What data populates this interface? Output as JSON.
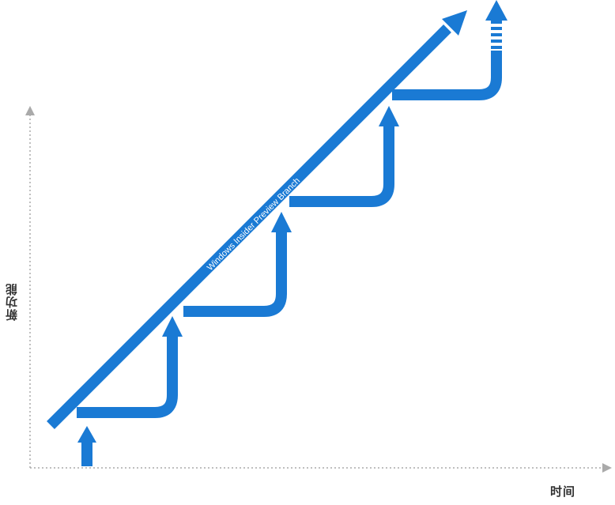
{
  "diagram": {
    "branch_label": "Windows Insider Preview Branch",
    "y_axis_label": "新功能",
    "x_axis_label": "时间",
    "colors": {
      "branch": "#1a7ad4",
      "axis": "#aaaaaa",
      "label_text": "#333333",
      "branch_text": "#ffffff"
    }
  }
}
